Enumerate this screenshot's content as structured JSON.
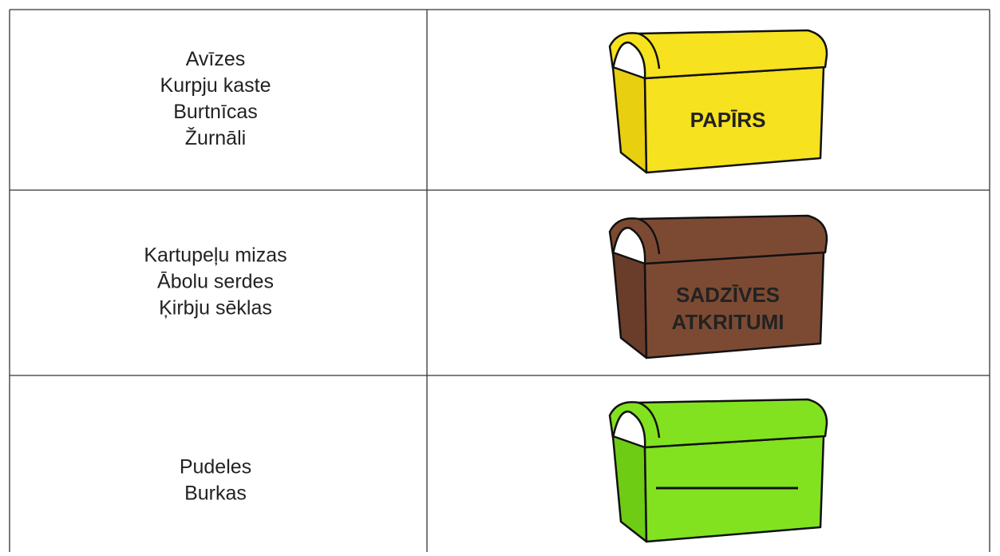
{
  "table": {
    "rows": [
      {
        "items": [
          "Avīzes",
          "Kurpju kaste",
          "Burtnīcas",
          "Žurnāli"
        ],
        "bin_label": [
          "PAPĪRS"
        ]
      },
      {
        "items": [
          "Kartupeļu mizas",
          "Ābolu serdes",
          "Ķirbju sēklas"
        ],
        "bin_label": [
          "SADZĪVES",
          "ATKRITUMI"
        ]
      },
      {
        "items": [
          "Pudeles",
          "Burkas"
        ]
      }
    ]
  }
}
